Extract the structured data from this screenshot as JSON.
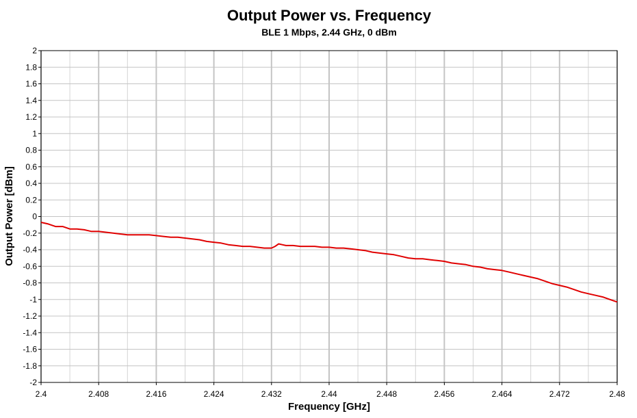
{
  "chart_data": {
    "type": "line",
    "title": "Output Power vs. Frequency",
    "subtitle": "BLE 1 Mbps, 2.44 GHz, 0 dBm",
    "xlabel": "Frequency [GHz]",
    "ylabel": "Output Power [dBm]",
    "xlim": [
      2.4,
      2.48
    ],
    "ylim": [
      -2,
      2
    ],
    "x_ticks": [
      "2.4",
      "2.408",
      "2.416",
      "2.424",
      "2.432",
      "2.44",
      "2.448",
      "2.456",
      "2.464",
      "2.472",
      "2.48"
    ],
    "y_ticks": [
      "2",
      "1.8",
      "1.6",
      "1.4",
      "1.2",
      "1",
      "0.8",
      "0.6",
      "0.4",
      "0.2",
      "0",
      "-0.2",
      "-0.4",
      "-0.6",
      "-0.8",
      "-1",
      "-1.2",
      "-1.4",
      "-1.6",
      "-1.8",
      "-2"
    ],
    "grid": true,
    "series": [
      {
        "name": "Output Power",
        "color": "#e00000",
        "x": [
          2.4,
          2.401,
          2.402,
          2.403,
          2.404,
          2.405,
          2.406,
          2.407,
          2.408,
          2.409,
          2.41,
          2.411,
          2.412,
          2.413,
          2.414,
          2.415,
          2.416,
          2.417,
          2.418,
          2.419,
          2.42,
          2.421,
          2.422,
          2.423,
          2.424,
          2.425,
          2.426,
          2.427,
          2.428,
          2.429,
          2.43,
          2.431,
          2.432,
          2.4325,
          2.433,
          2.4335,
          2.434,
          2.435,
          2.436,
          2.437,
          2.438,
          2.439,
          2.44,
          2.441,
          2.442,
          2.443,
          2.444,
          2.445,
          2.446,
          2.447,
          2.448,
          2.449,
          2.45,
          2.451,
          2.452,
          2.453,
          2.454,
          2.455,
          2.456,
          2.457,
          2.458,
          2.459,
          2.46,
          2.461,
          2.462,
          2.463,
          2.464,
          2.465,
          2.466,
          2.467,
          2.468,
          2.469,
          2.47,
          2.471,
          2.472,
          2.473,
          2.474,
          2.475,
          2.476,
          2.477,
          2.478,
          2.479,
          2.48
        ],
        "values": [
          -0.07,
          -0.09,
          -0.12,
          -0.12,
          -0.15,
          -0.15,
          -0.16,
          -0.18,
          -0.18,
          -0.19,
          -0.2,
          -0.21,
          -0.22,
          -0.22,
          -0.22,
          -0.22,
          -0.23,
          -0.24,
          -0.25,
          -0.25,
          -0.26,
          -0.27,
          -0.28,
          -0.3,
          -0.31,
          -0.32,
          -0.34,
          -0.35,
          -0.36,
          -0.36,
          -0.37,
          -0.38,
          -0.38,
          -0.36,
          -0.33,
          -0.34,
          -0.35,
          -0.35,
          -0.36,
          -0.36,
          -0.36,
          -0.37,
          -0.37,
          -0.38,
          -0.38,
          -0.39,
          -0.4,
          -0.41,
          -0.43,
          -0.44,
          -0.45,
          -0.46,
          -0.48,
          -0.5,
          -0.51,
          -0.51,
          -0.52,
          -0.53,
          -0.54,
          -0.56,
          -0.57,
          -0.58,
          -0.6,
          -0.61,
          -0.63,
          -0.64,
          -0.65,
          -0.67,
          -0.69,
          -0.71,
          -0.73,
          -0.75,
          -0.78,
          -0.81,
          -0.83,
          -0.85,
          -0.88,
          -0.91,
          -0.93,
          -0.95,
          -0.97,
          -1.0,
          -1.03
        ]
      }
    ]
  }
}
